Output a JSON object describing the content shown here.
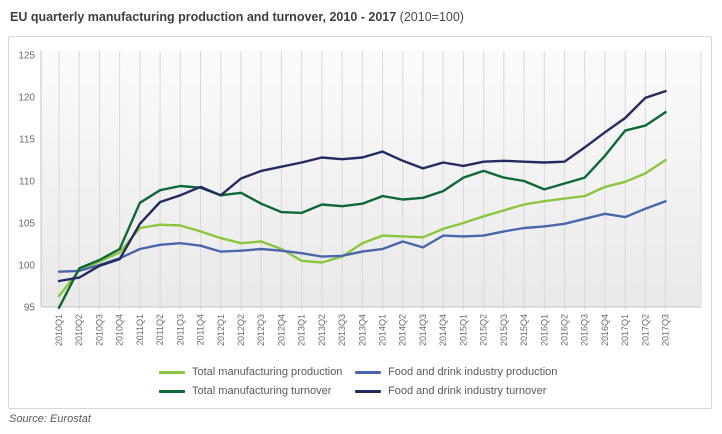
{
  "title": {
    "main": "EU quarterly manufacturing production and turnover, 2010 - 2017",
    "suffix": " (2010=100)"
  },
  "source": "Source: Eurostat",
  "chart_data": {
    "type": "line",
    "title": "EU quarterly manufacturing production and turnover, 2010 - 2017 (2010=100)",
    "xlabel": "",
    "ylabel": "",
    "ylim": [
      95,
      125
    ],
    "yticks": [
      95,
      100,
      105,
      110,
      115,
      120,
      125
    ],
    "grid": "vertical",
    "legend_position": "bottom",
    "categories": [
      "2010Q1",
      "2010Q2",
      "2010Q3",
      "2010Q4",
      "2011Q1",
      "2011Q2",
      "2011Q3",
      "2011Q4",
      "2012Q1",
      "2012Q2",
      "2012Q3",
      "2012Q4",
      "2013Q1",
      "2013Q2",
      "2013Q3",
      "2013Q4",
      "2014Q1",
      "2014Q2",
      "2014Q3",
      "2014Q4",
      "2015Q1",
      "2015Q2",
      "2015Q3",
      "2015Q4",
      "2016Q1",
      "2016Q2",
      "2016Q3",
      "2016Q4",
      "2017Q1",
      "2017Q2",
      "2017Q3"
    ],
    "series": [
      {
        "name": "Total manufacturing production",
        "color": "#8cc63e",
        "values": [
          96.3,
          99.4,
          100.4,
          101.5,
          104.4,
          104.8,
          104.7,
          104.0,
          103.2,
          102.6,
          102.8,
          101.9,
          100.5,
          100.3,
          101.0,
          102.6,
          103.5,
          103.4,
          103.3,
          104.3,
          105.0,
          105.8,
          106.5,
          107.2,
          107.6,
          107.9,
          108.2,
          109.3,
          109.9,
          110.9,
          112.5
        ]
      },
      {
        "name": "Food and drink industry production",
        "color": "#4a67ad",
        "values": [
          99.2,
          99.3,
          100.0,
          100.8,
          101.9,
          102.4,
          102.6,
          102.3,
          101.6,
          101.7,
          101.9,
          101.7,
          101.4,
          101.0,
          101.1,
          101.6,
          101.9,
          102.8,
          102.1,
          103.5,
          103.4,
          103.5,
          104.0,
          104.4,
          104.6,
          104.9,
          105.5,
          106.1,
          105.7,
          106.7,
          107.6
        ]
      },
      {
        "name": "Total manufacturing turnover",
        "color": "#0e6837",
        "values": [
          94.9,
          99.6,
          100.6,
          101.9,
          107.4,
          108.9,
          109.4,
          109.2,
          108.3,
          108.6,
          107.3,
          106.3,
          106.2,
          107.2,
          107.0,
          107.3,
          108.2,
          107.8,
          108.0,
          108.8,
          110.4,
          111.2,
          110.4,
          110.0,
          109.0,
          109.7,
          110.4,
          113.0,
          116.0,
          116.6,
          118.2
        ]
      },
      {
        "name": "Food and drink industry turnover",
        "color": "#242b61",
        "values": [
          98.1,
          98.5,
          99.9,
          100.7,
          104.9,
          107.5,
          108.3,
          109.3,
          108.3,
          110.3,
          111.2,
          111.7,
          112.2,
          112.8,
          112.6,
          112.8,
          113.5,
          112.4,
          111.5,
          112.2,
          111.8,
          112.3,
          112.4,
          112.3,
          112.2,
          112.3,
          114.0,
          115.8,
          117.5,
          119.9,
          120.7
        ]
      }
    ]
  },
  "colors": {
    "gridline": "#d9d9d9",
    "axis": "#c3c3c3",
    "plot_bg_top": "#fbfbfb",
    "plot_bg_bottom": "#e9e9e9"
  }
}
